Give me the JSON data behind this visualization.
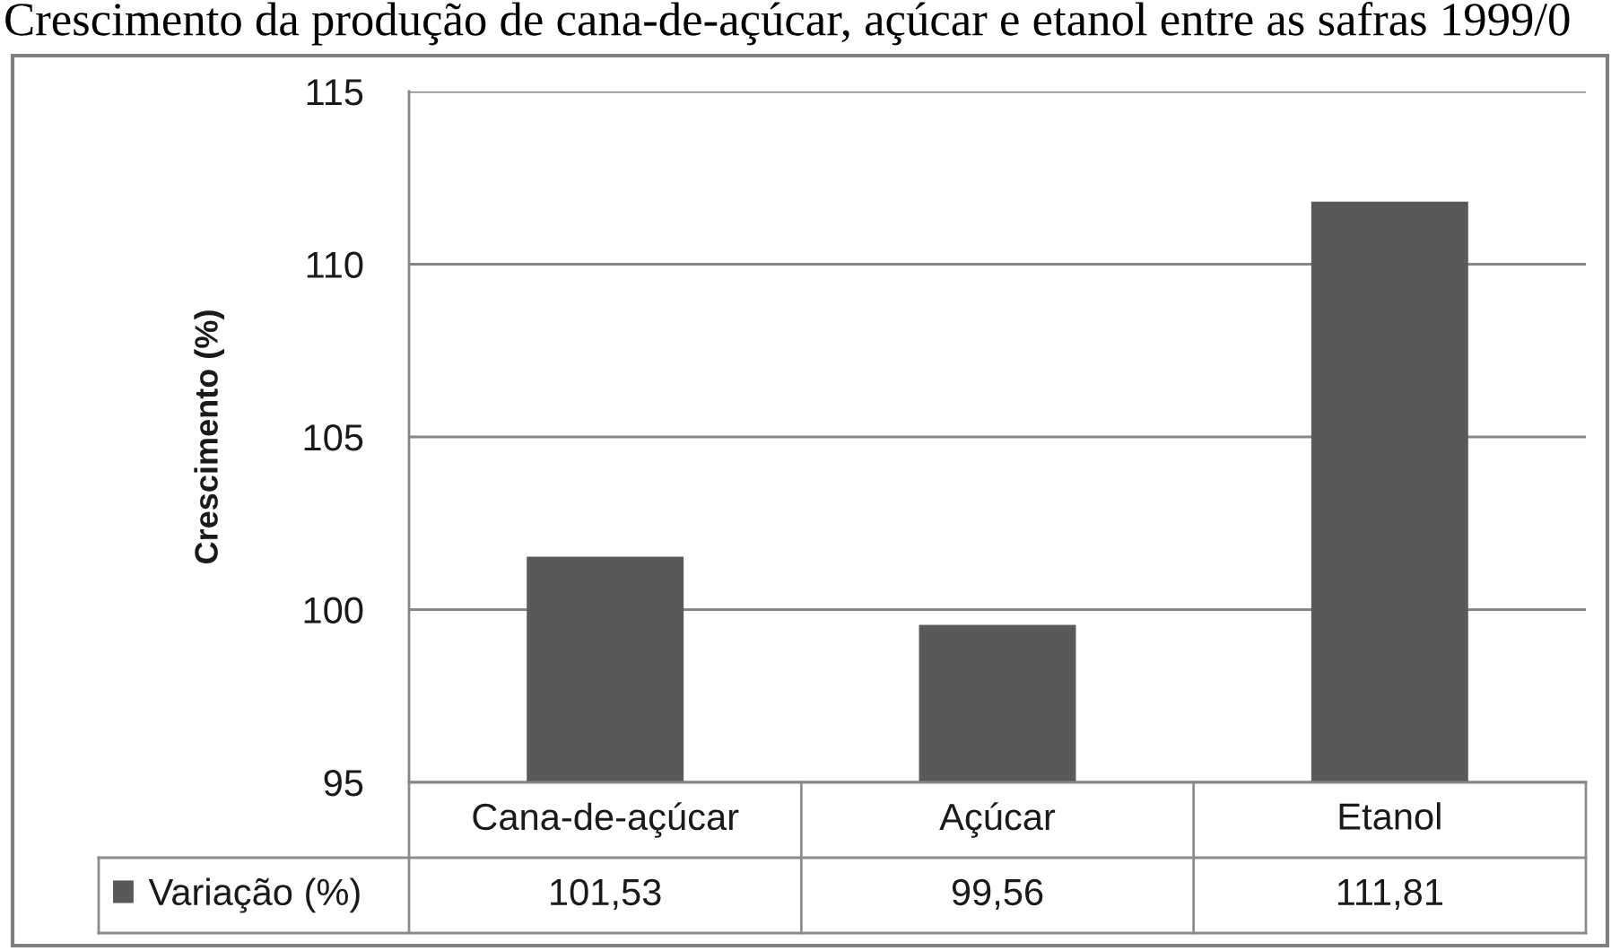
{
  "chart_data": {
    "type": "bar",
    "title": "Crescimento da produção de cana-de-açúcar, açúcar e etanol entre as safras 1999/0",
    "ylabel": "Crescimento (%)",
    "categories": [
      "Cana-de-açúcar",
      "Açúcar",
      "Etanol"
    ],
    "series": [
      {
        "name": "Variação (%)",
        "color": "#595959",
        "values": [
          101.53,
          99.56,
          111.81
        ],
        "value_labels": [
          "101,53",
          "99,56",
          "111,81"
        ]
      }
    ],
    "ylim": [
      95,
      115
    ],
    "yticks": [
      95,
      100,
      105,
      110,
      115
    ],
    "grid": "y",
    "legend": "bottom left"
  }
}
